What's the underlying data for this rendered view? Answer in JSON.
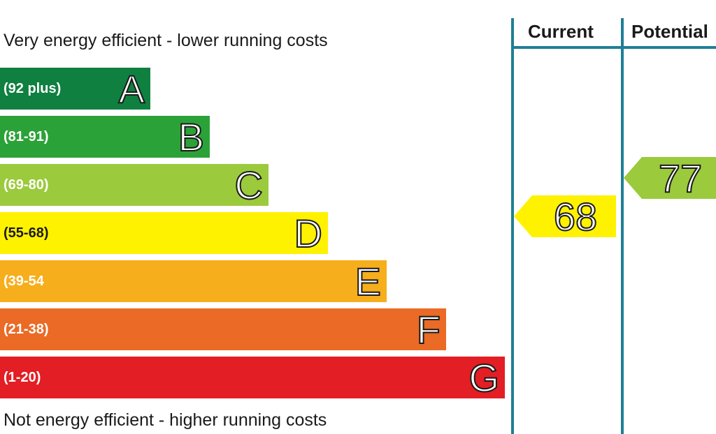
{
  "top_caption": "Very energy efficient - lower running costs",
  "bottom_caption": "Not energy efficient - higher running costs",
  "columns": {
    "current": "Current",
    "potential": "Potential"
  },
  "chart_data": {
    "type": "bar",
    "categories": [
      "A",
      "B",
      "C",
      "D",
      "E",
      "F",
      "G"
    ],
    "ranges": [
      "(92 plus)",
      "(81-91)",
      "(69-80)",
      "(55-68)",
      "(39-54",
      "(21-38)",
      "(1-20)"
    ],
    "colors": [
      "#0f8040",
      "#2ba238",
      "#9bca3c",
      "#fff200",
      "#f6ae1d",
      "#ea6a26",
      "#e31e24"
    ],
    "current": {
      "value": "68",
      "band": "D",
      "color": "#fff200"
    },
    "potential": {
      "value": "77",
      "band": "C",
      "color": "#9bca3c"
    }
  }
}
